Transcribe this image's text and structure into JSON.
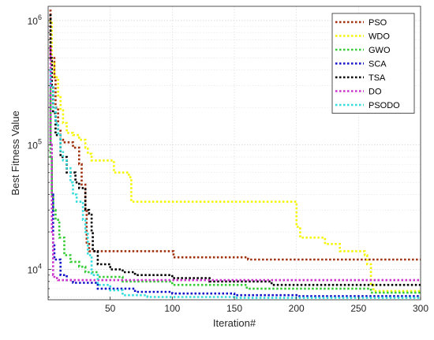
{
  "chart_data": {
    "type": "line",
    "xlabel": "Iteration#",
    "ylabel": "Best Fitness Value",
    "xlim": [
      0,
      300
    ],
    "ylim": [
      5700,
      1300000
    ],
    "yscale": "log",
    "grid": true,
    "legend_position": "top-right",
    "x_ticks": [
      50,
      100,
      150,
      200,
      250,
      300
    ],
    "x_tick_labels": [
      "50",
      "100",
      "150",
      "200",
      "250",
      "300"
    ],
    "y_ticks": [
      10000,
      100000,
      1000000
    ],
    "y_tick_labels": [
      {
        "base": "10",
        "exp": "4"
      },
      {
        "base": "10",
        "exp": "5"
      },
      {
        "base": "10",
        "exp": "6"
      }
    ],
    "series": [
      {
        "name": "PSO",
        "color": "#a0300e",
        "points": [
          [
            1,
            1200000
          ],
          [
            2,
            500000
          ],
          [
            4,
            500000
          ],
          [
            5,
            350000
          ],
          [
            6,
            200000
          ],
          [
            8,
            130000
          ],
          [
            10,
            110000
          ],
          [
            12,
            105000
          ],
          [
            15,
            105000
          ],
          [
            20,
            95000
          ],
          [
            25,
            70000
          ],
          [
            27,
            48000
          ],
          [
            30,
            30000
          ],
          [
            31,
            16000
          ],
          [
            33,
            14000
          ],
          [
            60,
            14000
          ],
          [
            100,
            14000
          ],
          [
            101,
            12500
          ],
          [
            160,
            12500
          ],
          [
            161,
            12000
          ],
          [
            300,
            12000
          ]
        ]
      },
      {
        "name": "WDO",
        "color": "#f5f500",
        "points": [
          [
            1,
            1000000
          ],
          [
            3,
            450000
          ],
          [
            5,
            350000
          ],
          [
            8,
            250000
          ],
          [
            10,
            190000
          ],
          [
            12,
            150000
          ],
          [
            15,
            125000
          ],
          [
            20,
            120000
          ],
          [
            25,
            110000
          ],
          [
            30,
            95000
          ],
          [
            32,
            85000
          ],
          [
            35,
            75000
          ],
          [
            52,
            75000
          ],
          [
            53,
            60000
          ],
          [
            65,
            55000
          ],
          [
            67,
            35000
          ],
          [
            199,
            35000
          ],
          [
            200,
            22000
          ],
          [
            203,
            18000
          ],
          [
            222,
            18000
          ],
          [
            223,
            16000
          ],
          [
            235,
            14000
          ],
          [
            255,
            13000
          ],
          [
            257,
            11000
          ],
          [
            260,
            7500
          ],
          [
            262,
            6700
          ],
          [
            300,
            6700
          ]
        ]
      },
      {
        "name": "GWO",
        "color": "#33cc33",
        "points": [
          [
            1,
            300000
          ],
          [
            2,
            80000
          ],
          [
            3,
            40000
          ],
          [
            4,
            30000
          ],
          [
            6,
            25000
          ],
          [
            9,
            18000
          ],
          [
            13,
            13000
          ],
          [
            18,
            11500
          ],
          [
            25,
            10500
          ],
          [
            30,
            9500
          ],
          [
            40,
            8700
          ],
          [
            60,
            8000
          ],
          [
            100,
            7500
          ],
          [
            160,
            7000
          ],
          [
            260,
            6500
          ],
          [
            300,
            6300
          ]
        ]
      },
      {
        "name": "SCA",
        "color": "#1010c8",
        "points": [
          [
            1,
            250000
          ],
          [
            2,
            100000
          ],
          [
            3,
            40000
          ],
          [
            4,
            16000
          ],
          [
            5,
            12000
          ],
          [
            10,
            9000
          ],
          [
            15,
            8200
          ],
          [
            20,
            7800
          ],
          [
            40,
            7000
          ],
          [
            70,
            6600
          ],
          [
            100,
            6400
          ],
          [
            150,
            6200
          ],
          [
            200,
            6100
          ],
          [
            300,
            6100
          ]
        ]
      },
      {
        "name": "TSA",
        "color": "#000000",
        "points": [
          [
            1,
            1100000
          ],
          [
            2,
            500000
          ],
          [
            3,
            300000
          ],
          [
            4,
            180000
          ],
          [
            6,
            120000
          ],
          [
            10,
            80000
          ],
          [
            15,
            60000
          ],
          [
            22,
            50000
          ],
          [
            25,
            45000
          ],
          [
            30,
            30000
          ],
          [
            33,
            28000
          ],
          [
            35,
            20000
          ],
          [
            36,
            14000
          ],
          [
            40,
            11000
          ],
          [
            50,
            10000
          ],
          [
            60,
            9500
          ],
          [
            70,
            9000
          ],
          [
            100,
            8500
          ],
          [
            130,
            8000
          ],
          [
            180,
            7500
          ],
          [
            300,
            7500
          ]
        ]
      },
      {
        "name": "DO",
        "color": "#cc33cc",
        "points": [
          [
            1,
            600000
          ],
          [
            2,
            100000
          ],
          [
            3,
            20000
          ],
          [
            4,
            9000
          ],
          [
            5,
            8500
          ],
          [
            8,
            8200
          ],
          [
            20,
            8200
          ],
          [
            300,
            8200
          ]
        ]
      },
      {
        "name": "PSODO",
        "color": "#33dddd",
        "points": [
          [
            1,
            400000
          ],
          [
            2,
            300000
          ],
          [
            4,
            200000
          ],
          [
            6,
            150000
          ],
          [
            8,
            120000
          ],
          [
            10,
            90000
          ],
          [
            12,
            75000
          ],
          [
            15,
            65000
          ],
          [
            18,
            50000
          ],
          [
            20,
            40000
          ],
          [
            23,
            35000
          ],
          [
            28,
            25000
          ],
          [
            30,
            20000
          ],
          [
            32,
            13000
          ],
          [
            35,
            9000
          ],
          [
            40,
            7500
          ],
          [
            50,
            6800
          ],
          [
            60,
            6200
          ],
          [
            80,
            6000
          ],
          [
            150,
            5900
          ],
          [
            300,
            5900
          ]
        ]
      }
    ]
  }
}
